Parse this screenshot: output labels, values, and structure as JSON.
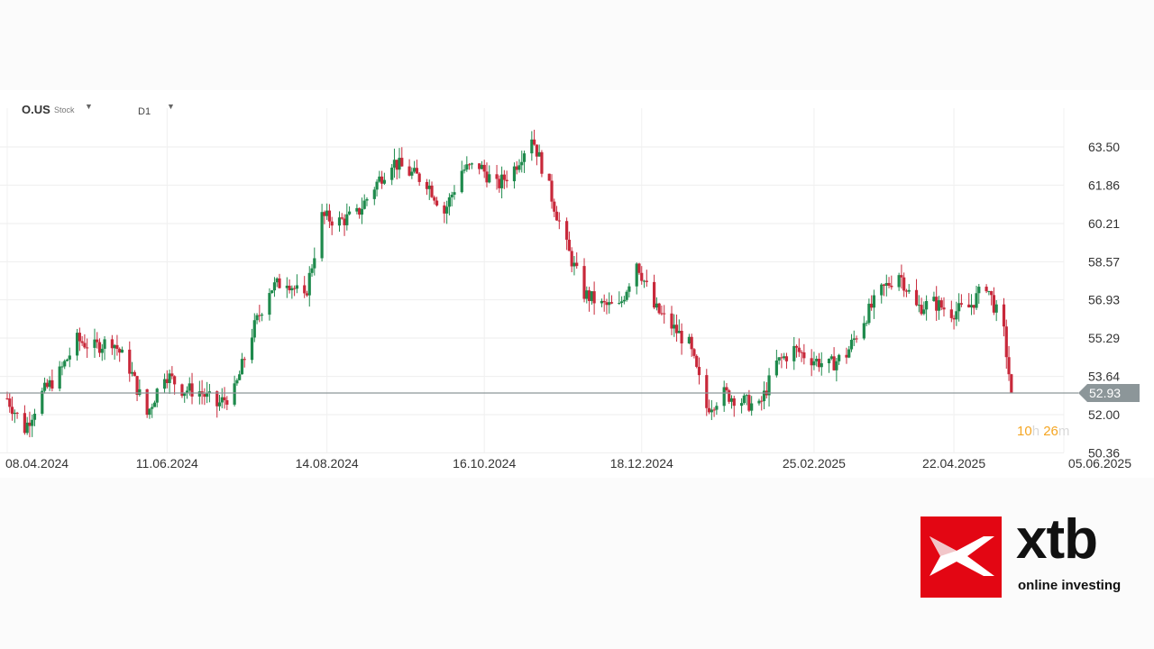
{
  "header": {
    "symbol": "O.US",
    "symbol_type": "Stock",
    "timeframe": "D1"
  },
  "countdown": {
    "hours": "10",
    "hours_unit": "h",
    "minutes": "26",
    "minutes_unit": "m"
  },
  "logo": {
    "wordmark": "xtb",
    "tagline": "online investing"
  },
  "colors": {
    "up": "#1e8a4c",
    "down": "#c8283a",
    "price_line": "#8c9699",
    "countdown": "#f5a623",
    "brand": "#e30613"
  },
  "icons": {
    "dropdown": "caret-down-icon",
    "brand_mark": "xtb-x-logo"
  },
  "chart_data": {
    "type": "candlestick",
    "title": "",
    "xlabel": "",
    "ylabel": "",
    "ylim": [
      50.36,
      64.5
    ],
    "y_ticks": [
      "63.50",
      "61.86",
      "60.21",
      "58.57",
      "56.93",
      "55.29",
      "53.64",
      "52.00",
      "50.36"
    ],
    "x_ticks": [
      "08.04.2024",
      "11.06.2024",
      "14.08.2024",
      "16.10.2024",
      "18.12.2024",
      "25.02.2025",
      "22.04.2025",
      "05.06.2025"
    ],
    "x_range": [
      "2024-04-08",
      "2025-06-05"
    ],
    "grid": true,
    "last_price": "52.93",
    "series": [
      {
        "weekly_close": [
          [
            "2024-04-08",
            52.7
          ],
          [
            "2024-04-15",
            51.4
          ],
          [
            "2024-04-22",
            52.9
          ],
          [
            "2024-04-29",
            53.8
          ],
          [
            "2024-05-06",
            55.2
          ],
          [
            "2024-05-13",
            54.9
          ],
          [
            "2024-05-20",
            55.2
          ],
          [
            "2024-05-27",
            54.0
          ],
          [
            "2024-06-03",
            52.0
          ],
          [
            "2024-06-10",
            53.8
          ],
          [
            "2024-06-17",
            53.1
          ],
          [
            "2024-06-24",
            53.0
          ],
          [
            "2024-07-01",
            52.4
          ],
          [
            "2024-07-08",
            53.0
          ],
          [
            "2024-07-15",
            55.5
          ],
          [
            "2024-07-22",
            57.4
          ],
          [
            "2024-07-29",
            57.8
          ],
          [
            "2024-08-05",
            56.9
          ],
          [
            "2024-08-12",
            60.5
          ],
          [
            "2024-08-19",
            60.3
          ],
          [
            "2024-08-26",
            60.6
          ],
          [
            "2024-09-02",
            61.8
          ],
          [
            "2024-09-09",
            62.9
          ],
          [
            "2024-09-16",
            62.4
          ],
          [
            "2024-09-23",
            62.0
          ],
          [
            "2024-09-30",
            60.7
          ],
          [
            "2024-10-07",
            62.5
          ],
          [
            "2024-10-14",
            62.7
          ],
          [
            "2024-10-21",
            61.8
          ],
          [
            "2024-10-28",
            62.6
          ],
          [
            "2024-11-04",
            64.0
          ],
          [
            "2024-11-11",
            61.7
          ],
          [
            "2024-11-18",
            59.2
          ],
          [
            "2024-11-25",
            57.2
          ],
          [
            "2024-12-02",
            56.7
          ],
          [
            "2024-12-09",
            56.6
          ],
          [
            "2024-12-16",
            58.6
          ],
          [
            "2024-12-23",
            56.6
          ],
          [
            "2024-12-30",
            55.8
          ],
          [
            "2025-01-06",
            55.0
          ],
          [
            "2025-01-13",
            52.3
          ],
          [
            "2025-01-20",
            52.9
          ],
          [
            "2025-01-27",
            52.6
          ],
          [
            "2025-02-03",
            52.3
          ],
          [
            "2025-02-10",
            54.2
          ],
          [
            "2025-02-17",
            54.8
          ],
          [
            "2025-02-24",
            54.4
          ],
          [
            "2025-03-03",
            54.1
          ],
          [
            "2025-03-10",
            54.6
          ],
          [
            "2025-03-17",
            56.1
          ],
          [
            "2025-03-24",
            57.3
          ],
          [
            "2025-03-31",
            58.1
          ],
          [
            "2025-04-07",
            56.6
          ],
          [
            "2025-04-14",
            56.8
          ],
          [
            "2025-04-21",
            56.4
          ],
          [
            "2025-04-28",
            56.6
          ],
          [
            "2025-05-05",
            57.6
          ],
          [
            "2025-05-12",
            55.5
          ],
          [
            "2025-05-15",
            52.93
          ]
        ]
      }
    ]
  }
}
